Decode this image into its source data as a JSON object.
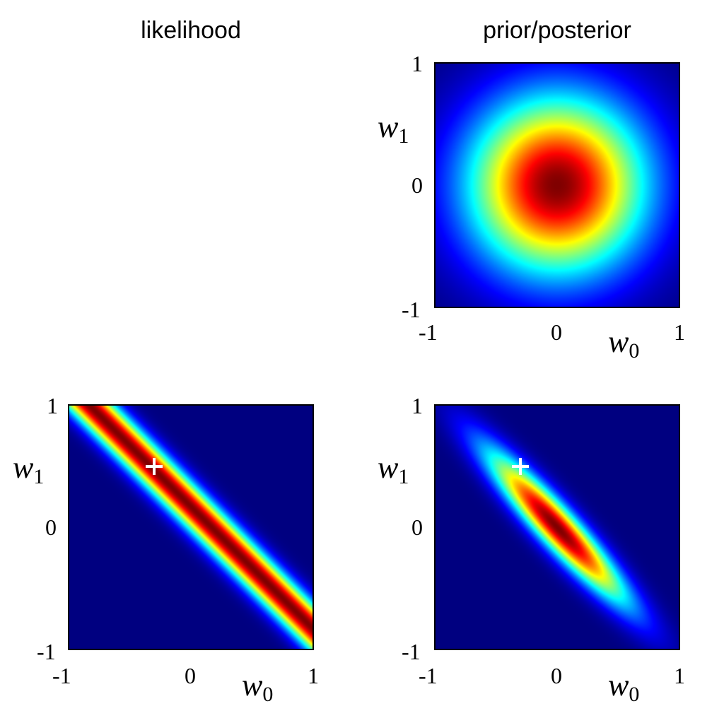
{
  "titles": {
    "left": "likelihood",
    "right": "prior/posterior"
  },
  "chart_data": [
    {
      "type": "heatmap",
      "name": "prior",
      "xlabel": "w0",
      "ylabel": "w1",
      "xlim": [
        -1,
        1
      ],
      "ylim": [
        -1,
        1
      ],
      "xticks": [
        "-1",
        "0",
        "1"
      ],
      "yticks": [
        "1",
        "0",
        "-1"
      ],
      "colormap": "jet",
      "distribution": {
        "mean": [
          0,
          0
        ],
        "sigma": [
          0.5,
          0.5
        ],
        "rho": 0
      }
    },
    {
      "type": "heatmap",
      "name": "likelihood",
      "xlabel": "w0",
      "ylabel": "w1",
      "xlim": [
        -1,
        1
      ],
      "ylim": [
        -1,
        1
      ],
      "xticks": [
        "-1",
        "0",
        "1"
      ],
      "yticks": [
        "1",
        "0",
        "-1"
      ],
      "colormap": "jet",
      "band": {
        "slope_w1_per_w0": -1.0,
        "w1_at_w0_zero": 0.17,
        "width": 0.1
      },
      "marker": {
        "w0": -0.3,
        "w1": 0.5
      }
    },
    {
      "type": "heatmap",
      "name": "posterior",
      "xlabel": "w0",
      "ylabel": "w1",
      "xlim": [
        -1,
        1
      ],
      "ylim": [
        -1,
        1
      ],
      "xticks": [
        "-1",
        "0",
        "1"
      ],
      "yticks": [
        "1",
        "0",
        "-1"
      ],
      "colormap": "jet",
      "distribution": {
        "mean": [
          0,
          0
        ],
        "sigma": [
          0.36,
          0.39
        ],
        "rho": -0.93
      },
      "marker": {
        "w0": -0.3,
        "w1": 0.5
      }
    }
  ]
}
